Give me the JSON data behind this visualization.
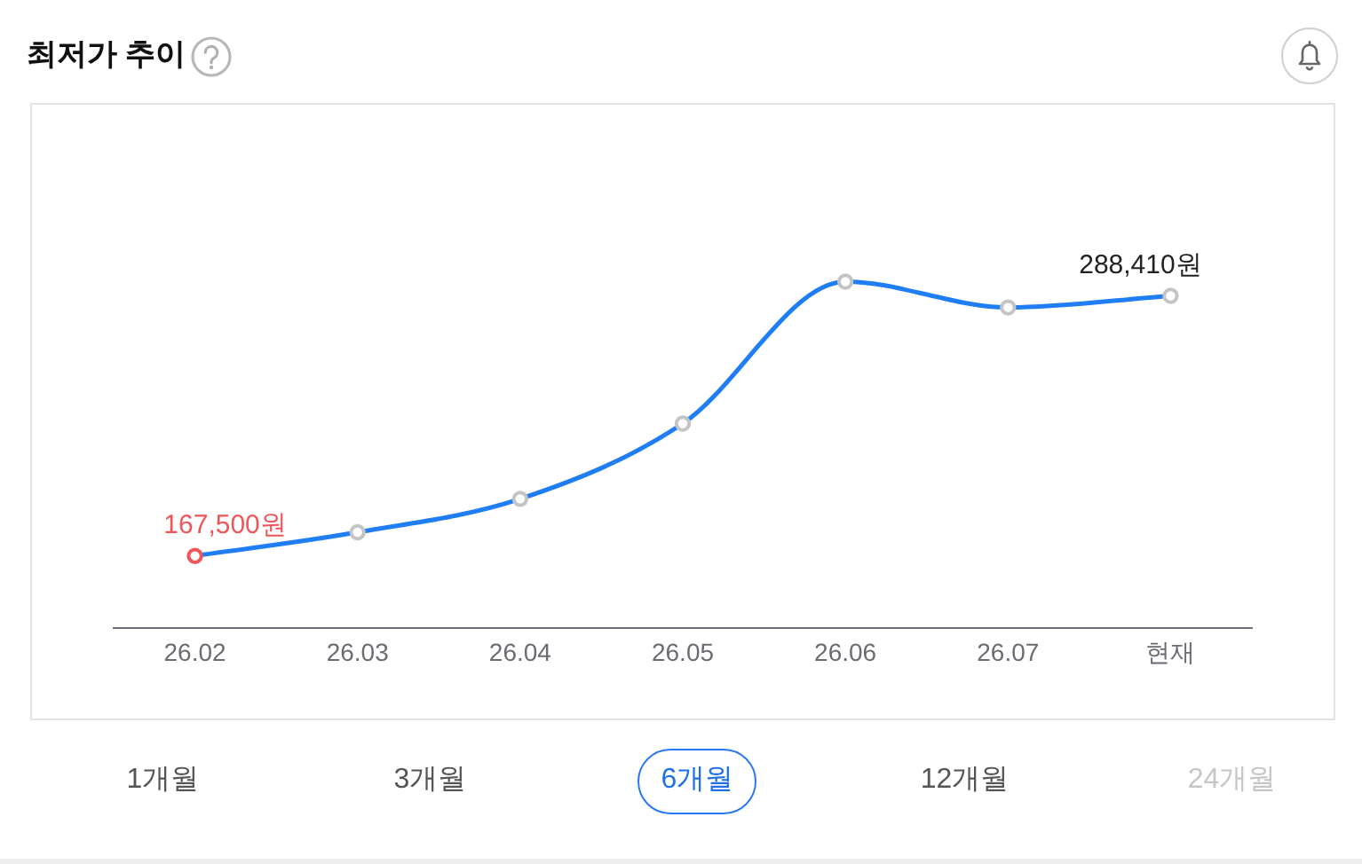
{
  "chart_data": {
    "type": "line",
    "title": "최저가 추이",
    "categories": [
      "26.02",
      "26.03",
      "26.04",
      "26.05",
      "26.06",
      "26.07",
      "현재"
    ],
    "values": [
      167500,
      178500,
      194000,
      229000,
      295000,
      283000,
      288410
    ],
    "color": "#1f7ef6",
    "colors": [
      "#f0555a",
      "#c4c4c4",
      "#c4c4c4",
      "#c4c4c4",
      "#c4c4c4",
      "#c4c4c4",
      "#c4c4c4"
    ],
    "value_labels": [
      "167,500원",
      null,
      null,
      null,
      null,
      null,
      "288,410원"
    ],
    "tick_labels": "x",
    "grid": false,
    "marker": "circle",
    "line_style": "solid",
    "annotations": [
      "1개월",
      "3개월",
      "6개월",
      "12개월",
      "24개월"
    ]
  }
}
